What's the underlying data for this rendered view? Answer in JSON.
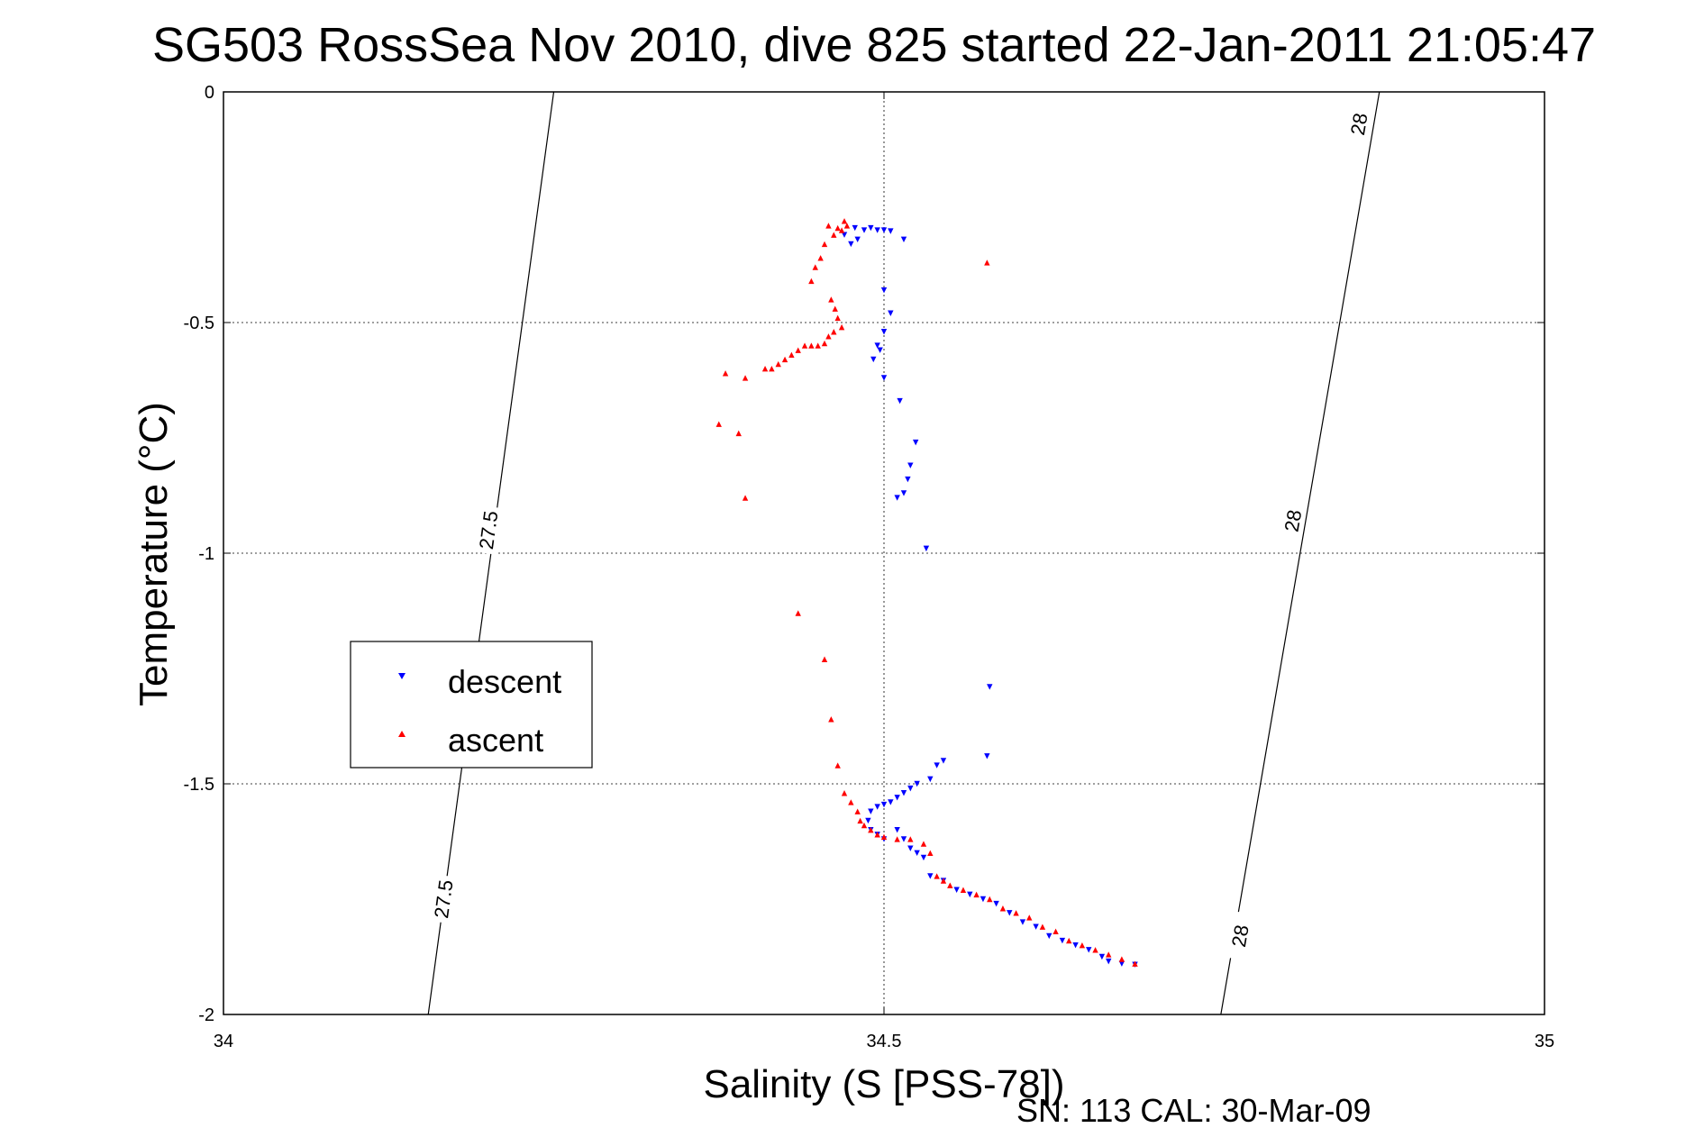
{
  "chart_data": {
    "type": "scatter",
    "title": "SG503 RossSea Nov 2010, dive 825 started 22-Jan-2011 21:05:47",
    "xlabel": "Salinity (S [PSS-78])",
    "ylabel": "Temperature (°C)",
    "xlim": [
      34,
      35
    ],
    "ylim": [
      -2,
      0
    ],
    "x_ticks": [
      "34",
      "34.5",
      "35"
    ],
    "y_ticks": [
      "0",
      "-0.5",
      "-1",
      "-1.5",
      "-2"
    ],
    "grid": true,
    "legend_position": "center-left",
    "footer": "SN: 113  CAL: 30-Mar-09",
    "density_contours": [
      {
        "label": "27.5",
        "points": [
          [
            34.155,
            -2.0
          ],
          [
            34.25,
            0.0
          ]
        ],
        "label_positions": [
          [
            34.167,
            -1.75
          ],
          [
            34.201,
            -0.95
          ]
        ]
      },
      {
        "label": "28",
        "points": [
          [
            34.755,
            -2.0
          ],
          [
            34.875,
            0.0
          ]
        ],
        "label_positions": [
          [
            34.77,
            -1.83
          ],
          [
            34.81,
            -0.93
          ],
          [
            34.86,
            -0.07
          ]
        ]
      }
    ],
    "series": [
      {
        "name": "descent",
        "color": "#0000ff",
        "marker": "triangle-down",
        "points": [
          [
            34.485,
            -0.3
          ],
          [
            34.49,
            -0.295
          ],
          [
            34.495,
            -0.3
          ],
          [
            34.5,
            -0.3
          ],
          [
            34.505,
            -0.302
          ],
          [
            34.515,
            -0.32
          ],
          [
            34.48,
            -0.32
          ],
          [
            34.475,
            -0.33
          ],
          [
            34.47,
            -0.31
          ],
          [
            34.478,
            -0.295
          ],
          [
            34.5,
            -0.43
          ],
          [
            34.505,
            -0.48
          ],
          [
            34.5,
            -0.52
          ],
          [
            34.495,
            -0.55
          ],
          [
            34.497,
            -0.56
          ],
          [
            34.492,
            -0.58
          ],
          [
            34.5,
            -0.62
          ],
          [
            34.512,
            -0.67
          ],
          [
            34.524,
            -0.76
          ],
          [
            34.52,
            -0.81
          ],
          [
            34.518,
            -0.84
          ],
          [
            34.515,
            -0.87
          ],
          [
            34.51,
            -0.88
          ],
          [
            34.532,
            -0.99
          ],
          [
            34.58,
            -1.29
          ],
          [
            34.578,
            -1.44
          ],
          [
            34.545,
            -1.45
          ],
          [
            34.54,
            -1.46
          ],
          [
            34.535,
            -1.49
          ],
          [
            34.525,
            -1.5
          ],
          [
            34.52,
            -1.51
          ],
          [
            34.515,
            -1.52
          ],
          [
            34.51,
            -1.53
          ],
          [
            34.505,
            -1.54
          ],
          [
            34.5,
            -1.545
          ],
          [
            34.495,
            -1.55
          ],
          [
            34.49,
            -1.56
          ],
          [
            34.488,
            -1.58
          ],
          [
            34.49,
            -1.6
          ],
          [
            34.495,
            -1.61
          ],
          [
            34.5,
            -1.62
          ],
          [
            34.51,
            -1.6
          ],
          [
            34.515,
            -1.62
          ],
          [
            34.52,
            -1.64
          ],
          [
            34.525,
            -1.65
          ],
          [
            34.53,
            -1.66
          ],
          [
            34.535,
            -1.7
          ],
          [
            34.545,
            -1.71
          ],
          [
            34.555,
            -1.73
          ],
          [
            34.565,
            -1.74
          ],
          [
            34.575,
            -1.75
          ],
          [
            34.585,
            -1.76
          ],
          [
            34.595,
            -1.78
          ],
          [
            34.605,
            -1.8
          ],
          [
            34.615,
            -1.81
          ],
          [
            34.625,
            -1.83
          ],
          [
            34.635,
            -1.84
          ],
          [
            34.645,
            -1.85
          ],
          [
            34.655,
            -1.86
          ],
          [
            34.665,
            -1.875
          ],
          [
            34.67,
            -1.885
          ],
          [
            34.68,
            -1.89
          ],
          [
            34.69,
            -1.892
          ]
        ]
      },
      {
        "name": "ascent",
        "color": "#ff0000",
        "marker": "triangle-up",
        "points": [
          [
            34.47,
            -0.28
          ],
          [
            34.472,
            -0.29
          ],
          [
            34.468,
            -0.3
          ],
          [
            34.465,
            -0.295
          ],
          [
            34.462,
            -0.31
          ],
          [
            34.458,
            -0.29
          ],
          [
            34.455,
            -0.33
          ],
          [
            34.452,
            -0.36
          ],
          [
            34.448,
            -0.38
          ],
          [
            34.445,
            -0.41
          ],
          [
            34.578,
            -0.37
          ],
          [
            34.46,
            -0.45
          ],
          [
            34.463,
            -0.47
          ],
          [
            34.465,
            -0.49
          ],
          [
            34.468,
            -0.51
          ],
          [
            34.462,
            -0.52
          ],
          [
            34.458,
            -0.53
          ],
          [
            34.455,
            -0.545
          ],
          [
            34.45,
            -0.55
          ],
          [
            34.445,
            -0.55
          ],
          [
            34.44,
            -0.55
          ],
          [
            34.435,
            -0.56
          ],
          [
            34.43,
            -0.57
          ],
          [
            34.425,
            -0.58
          ],
          [
            34.42,
            -0.59
          ],
          [
            34.415,
            -0.6
          ],
          [
            34.41,
            -0.6
          ],
          [
            34.395,
            -0.62
          ],
          [
            34.38,
            -0.61
          ],
          [
            34.375,
            -0.72
          ],
          [
            34.39,
            -0.74
          ],
          [
            34.395,
            -0.88
          ],
          [
            34.435,
            -1.13
          ],
          [
            34.455,
            -1.23
          ],
          [
            34.46,
            -1.36
          ],
          [
            34.465,
            -1.46
          ],
          [
            34.47,
            -1.52
          ],
          [
            34.475,
            -1.54
          ],
          [
            34.48,
            -1.56
          ],
          [
            34.482,
            -1.58
          ],
          [
            34.485,
            -1.59
          ],
          [
            34.49,
            -1.6
          ],
          [
            34.495,
            -1.61
          ],
          [
            34.5,
            -1.615
          ],
          [
            34.51,
            -1.62
          ],
          [
            34.52,
            -1.62
          ],
          [
            34.53,
            -1.63
          ],
          [
            34.535,
            -1.65
          ],
          [
            34.54,
            -1.7
          ],
          [
            34.545,
            -1.71
          ],
          [
            34.55,
            -1.72
          ],
          [
            34.56,
            -1.73
          ],
          [
            34.57,
            -1.74
          ],
          [
            34.58,
            -1.75
          ],
          [
            34.59,
            -1.77
          ],
          [
            34.6,
            -1.78
          ],
          [
            34.61,
            -1.79
          ],
          [
            34.62,
            -1.81
          ],
          [
            34.63,
            -1.82
          ],
          [
            34.64,
            -1.84
          ],
          [
            34.65,
            -1.85
          ],
          [
            34.66,
            -1.86
          ],
          [
            34.67,
            -1.87
          ],
          [
            34.68,
            -1.88
          ],
          [
            34.69,
            -1.89
          ]
        ]
      }
    ]
  }
}
